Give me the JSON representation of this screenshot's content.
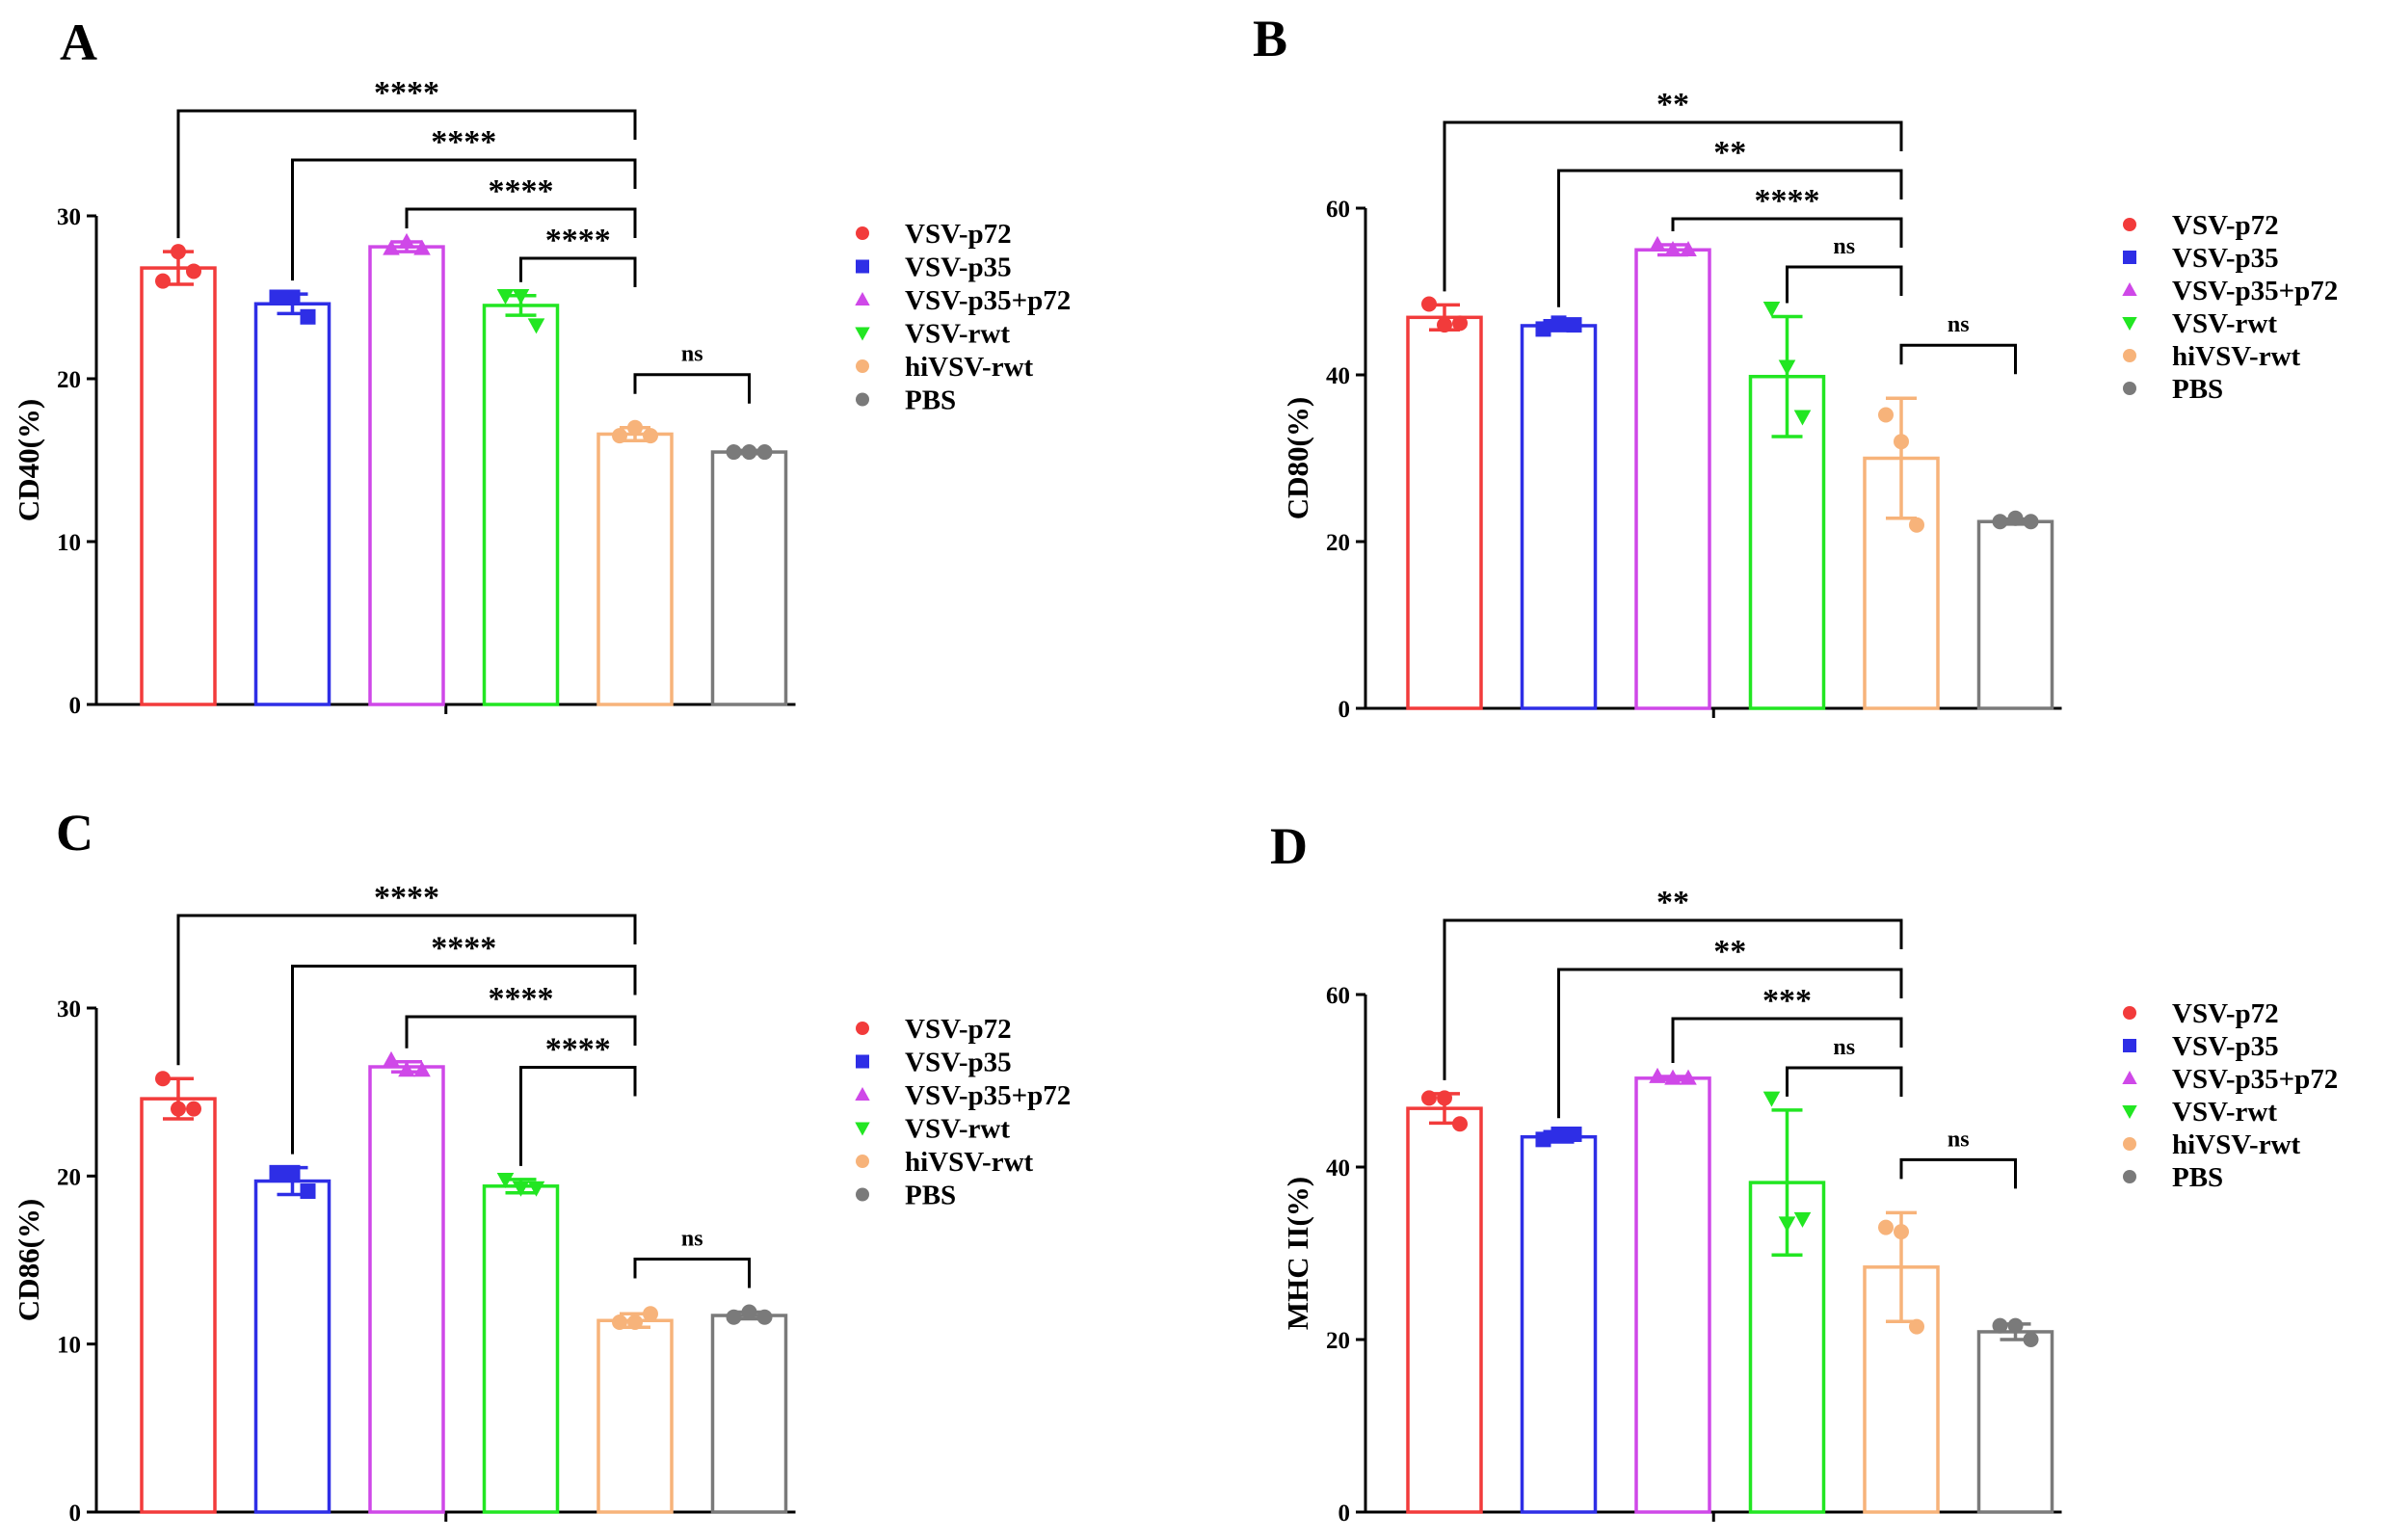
{
  "colors": {
    "VSV-p72": "#f23b3b",
    "VSV-p35": "#2e2ee6",
    "VSV-p35+p72": "#cf48e8",
    "VSV-rwt": "#22e622",
    "hiVSV-rwt": "#f7b37a",
    "PBS": "#7a7a7a"
  },
  "chart_data": [
    {
      "type": "bar",
      "panel": "A",
      "ylabel": "CD40(%)",
      "ylim": [
        0,
        30
      ],
      "yticks": [
        0,
        10,
        20,
        30
      ],
      "categories": [
        "VSV-p72",
        "VSV-p35",
        "VSV-p35+p72",
        "VSV-rwt",
        "hiVSV-rwt",
        "PBS"
      ],
      "markers": [
        "circle",
        "square",
        "triangle-up",
        "triangle-down",
        "circle",
        "circle"
      ],
      "values": [
        26.8,
        24.6,
        28.1,
        24.5,
        16.6,
        15.5
      ],
      "errors": [
        1.0,
        0.6,
        0.3,
        0.6,
        0.4,
        0.1
      ],
      "points": [
        [
          26.0,
          27.8,
          26.6
        ],
        [
          25.0,
          25.0,
          23.8
        ],
        [
          28.0,
          28.4,
          28.0
        ],
        [
          25.1,
          25.1,
          23.3
        ],
        [
          16.5,
          17.0,
          16.5
        ],
        [
          15.5,
          15.5,
          15.5
        ]
      ],
      "legend": [
        "VSV-p72",
        "VSV-p35",
        "VSV-p35+p72",
        "VSV-rwt",
        "hiVSV-rwt",
        "PBS"
      ],
      "comparisons": [
        {
          "from": 0,
          "to": 4,
          "label": "****"
        },
        {
          "from": 1,
          "to": 4,
          "label": "****"
        },
        {
          "from": 2,
          "to": 4,
          "label": "****"
        },
        {
          "from": 3,
          "to": 4,
          "label": "****"
        },
        {
          "from": 4,
          "to": 5,
          "label": "ns"
        }
      ]
    },
    {
      "type": "bar",
      "panel": "B",
      "ylabel": "CD80(%)",
      "ylim": [
        0,
        60
      ],
      "yticks": [
        0,
        20,
        40,
        60
      ],
      "categories": [
        "VSV-p72",
        "VSV-p35",
        "VSV-p35+p72",
        "VSV-rwt",
        "hiVSV-rwt",
        "PBS"
      ],
      "markers": [
        "circle",
        "square",
        "triangle-up",
        "triangle-down",
        "circle",
        "circle"
      ],
      "values": [
        46.9,
        45.9,
        55.0,
        39.8,
        30.0,
        22.4
      ],
      "errors": [
        1.5,
        0.6,
        0.6,
        7.2,
        7.2,
        0.3
      ],
      "points": [
        [
          48.5,
          46.0,
          46.2
        ],
        [
          45.5,
          46.2,
          46.0
        ],
        [
          55.6,
          55.0,
          55.0
        ],
        [
          48.0,
          41.0,
          35.0
        ],
        [
          35.2,
          32.0,
          22.0
        ],
        [
          22.4,
          22.8,
          22.4
        ]
      ],
      "legend": [
        "VSV-p72",
        "VSV-p35",
        "VSV-p35+p72",
        "VSV-rwt",
        "hiVSV-rwt",
        "PBS"
      ],
      "comparisons": [
        {
          "from": 0,
          "to": 4,
          "label": "**"
        },
        {
          "from": 1,
          "to": 4,
          "label": "**"
        },
        {
          "from": 2,
          "to": 4,
          "label": "****"
        },
        {
          "from": 3,
          "to": 4,
          "label": "ns"
        },
        {
          "from": 4,
          "to": 5,
          "label": "ns"
        }
      ]
    },
    {
      "type": "bar",
      "panel": "C",
      "ylabel": "CD86(%)",
      "ylim": [
        0,
        30
      ],
      "yticks": [
        0,
        10,
        20,
        30
      ],
      "categories": [
        "VSV-p72",
        "VSV-p35",
        "VSV-p35+p72",
        "VSV-rwt",
        "hiVSV-rwt",
        "PBS"
      ],
      "markers": [
        "circle",
        "square",
        "triangle-up",
        "triangle-down",
        "circle",
        "circle"
      ],
      "values": [
        24.6,
        19.7,
        26.5,
        19.4,
        11.4,
        11.7
      ],
      "errors": [
        1.2,
        0.8,
        0.3,
        0.4,
        0.4,
        0.2
      ],
      "points": [
        [
          25.8,
          24.0,
          24.0
        ],
        [
          20.2,
          20.2,
          19.1
        ],
        [
          26.9,
          26.3,
          26.3
        ],
        [
          19.8,
          19.3,
          19.3
        ],
        [
          11.3,
          11.3,
          11.8
        ],
        [
          11.6,
          11.9,
          11.6
        ]
      ],
      "legend": [
        "VSV-p72",
        "VSV-p35",
        "VSV-p35+p72",
        "VSV-rwt",
        "hiVSV-rwt",
        "PBS"
      ],
      "comparisons": [
        {
          "from": 0,
          "to": 4,
          "label": "****"
        },
        {
          "from": 1,
          "to": 4,
          "label": "****"
        },
        {
          "from": 2,
          "to": 4,
          "label": "****"
        },
        {
          "from": 3,
          "to": 4,
          "label": "****"
        },
        {
          "from": 4,
          "to": 5,
          "label": "ns"
        }
      ]
    },
    {
      "type": "bar",
      "panel": "D",
      "ylabel": "MHC II(%)",
      "ylim": [
        0,
        60
      ],
      "yticks": [
        0,
        20,
        40,
        60
      ],
      "categories": [
        "VSV-p72",
        "VSV-p35",
        "VSV-p35+p72",
        "VSV-rwt",
        "hiVSV-rwt",
        "PBS"
      ],
      "markers": [
        "circle",
        "square",
        "triangle-up",
        "triangle-down",
        "circle",
        "circle"
      ],
      "values": [
        46.8,
        43.5,
        50.3,
        38.2,
        28.4,
        20.9
      ],
      "errors": [
        1.7,
        0.6,
        0.2,
        8.4,
        6.3,
        0.9
      ],
      "points": [
        [
          48.0,
          48.0,
          45.0
        ],
        [
          43.2,
          43.8,
          43.8
        ],
        [
          50.5,
          50.3,
          50.3
        ],
        [
          48.0,
          33.5,
          34.0
        ],
        [
          33.0,
          32.5,
          21.5
        ],
        [
          21.6,
          21.6,
          20.0
        ]
      ],
      "legend": [
        "VSV-p72",
        "VSV-p35",
        "VSV-p35+p72",
        "VSV-rwt",
        "hiVSV-rwt",
        "PBS"
      ],
      "comparisons": [
        {
          "from": 0,
          "to": 4,
          "label": "**"
        },
        {
          "from": 1,
          "to": 4,
          "label": "**"
        },
        {
          "from": 2,
          "to": 4,
          "label": "***"
        },
        {
          "from": 3,
          "to": 4,
          "label": "ns"
        },
        {
          "from": 4,
          "to": 5,
          "label": "ns"
        }
      ]
    }
  ]
}
